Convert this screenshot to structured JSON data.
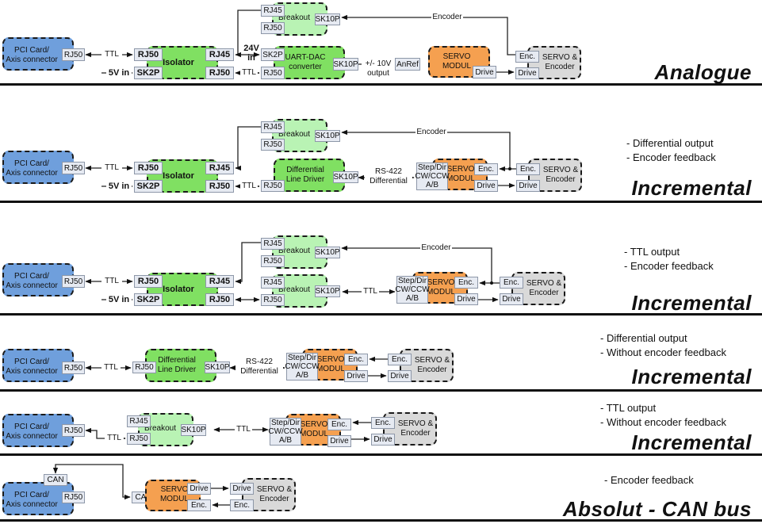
{
  "colors": {
    "pci": "#6f9fdc",
    "module": "#80e062",
    "breakout": "#b9f3b4",
    "servo_modul": "#f5a050",
    "servo_encoder": "#d9d9d9",
    "port": "#e6eaf2"
  },
  "sections": [
    {
      "title": "Analogue",
      "notes": [],
      "text": {
        "pci": "PCI Card/\nAxis connector",
        "pci_rj50": "RJ50",
        "ttl_a": "TTL",
        "iso": "Isolator",
        "iso_rj50_in": "RJ50",
        "iso_sk2p": "SK2P",
        "iso_rj45": "RJ45",
        "iso_rj50_out": "RJ50",
        "v5": "5V in",
        "brk": "Breakout",
        "brk_rj45": "RJ45",
        "brk_rj50": "RJ50",
        "brk_sk10p": "SK10P",
        "v24": "24V in",
        "dac": "UART-DAC\nconverter",
        "dac_sk2p": "SK2P",
        "dac_rj50": "RJ50",
        "dac_sk10p": "SK10P",
        "ttl_b": "TTL",
        "out": "+/- 10V output",
        "sm": "SERVO\nMODUL",
        "sm_anref": "AnRef",
        "sm_drive": "Drive",
        "se": "SERVO &\nEncoder",
        "se_enc": "Enc.",
        "se_drive": "Drive",
        "encoder": "Encoder"
      }
    },
    {
      "title": "Incremental",
      "notes": [
        "- Differential output",
        "- Encoder feedback"
      ],
      "text": {
        "pci": "PCI Card/\nAxis connector",
        "pci_rj50": "RJ50",
        "ttl_a": "TTL",
        "iso": "Isolator",
        "iso_rj50_in": "RJ50",
        "iso_sk2p": "SK2P",
        "iso_rj45": "RJ45",
        "iso_rj50_out": "RJ50",
        "v5": "5V in",
        "brk": "Breakout",
        "brk_rj45": "RJ45",
        "brk_rj50": "RJ50",
        "brk_sk10p": "SK10P",
        "ldd": "Differential\nLine Driver",
        "ldd_rj50": "RJ50",
        "ldd_sk10p": "SK10P",
        "ttl_b": "TTL",
        "rs": "RS-422\nDifferential",
        "sm_step": "Step/Dir\nCW/CCW\nA/B",
        "sm": "SERVO\nMODUL",
        "sm_enc": "Enc.",
        "sm_drive": "Drive",
        "se": "SERVO &\nEncoder",
        "se_enc": "Enc.",
        "se_drive": "Drive",
        "encoder": "Encoder"
      }
    },
    {
      "title": "Incremental",
      "notes": [
        "- TTL output",
        "- Encoder feedback"
      ],
      "text": {
        "pci": "PCI Card/\nAxis connector",
        "pci_rj50": "RJ50",
        "ttl_a": "TTL",
        "iso": "Isolator",
        "iso_rj50_in": "RJ50",
        "iso_sk2p": "SK2P",
        "iso_rj45": "RJ45",
        "iso_rj50_out": "RJ50",
        "v5": "5V in",
        "brk": "Breakout",
        "brk_rj45": "RJ45",
        "brk_rj50": "RJ50",
        "brk_sk10p": "SK10P",
        "brk2": "Breakout",
        "brk2_rj45": "RJ45",
        "brk2_rj50": "RJ50",
        "brk2_sk10p": "SK10P",
        "ttl_b": "TTL",
        "sm_step": "Step/Dir\nCW/CCW\nA/B",
        "sm": "SERVO\nMODUL",
        "sm_enc": "Enc.",
        "sm_drive": "Drive",
        "se": "SERVO &\nEncoder",
        "se_enc": "Enc.",
        "se_drive": "Drive",
        "encoder": "Encoder"
      }
    },
    {
      "title": "Incremental",
      "notes": [
        "- Differential output",
        "- Without encoder feedback"
      ],
      "text": {
        "pci": "PCI Card/\nAxis connector",
        "pci_rj50": "RJ50",
        "ttl_a": "TTL",
        "ldd": "Differential\nLine Driver",
        "ldd_rj50": "RJ50",
        "ldd_sk10p": "SK10P",
        "rs": "RS-422\nDifferential",
        "sm_step": "Step/Dir\nCW/CCW\nA/B",
        "sm": "SERVO\nMODUL",
        "sm_enc": "Enc.",
        "sm_drive": "Drive",
        "se": "SERVO &\nEncoder",
        "se_enc": "Enc.",
        "se_drive": "Drive"
      }
    },
    {
      "title": "Incremental",
      "notes": [
        "- TTL output",
        "- Without encoder feedback"
      ],
      "text": {
        "pci": "PCI Card/\nAxis connector",
        "pci_rj50": "RJ50",
        "ttl_a": "TTL",
        "brk": "Breakout",
        "brk_rj45": "RJ45",
        "brk_rj50": "RJ50",
        "brk_sk10p": "SK10P",
        "ttl_b": "TTL",
        "sm_step": "Step/Dir\nCW/CCW\nA/B",
        "sm": "SERVO\nMODUL",
        "sm_enc": "Enc.",
        "sm_drive": "Drive",
        "se": "SERVO &\nEncoder",
        "se_enc": "Enc.",
        "se_drive": "Drive"
      }
    },
    {
      "title": "Absolut - CAN bus",
      "notes": [
        "- Encoder feedback"
      ],
      "text": {
        "pci": "PCI Card/\nAxis connector",
        "pci_can": "CAN",
        "pci_rj50": "RJ50",
        "sm_can": "CAN",
        "sm": "SERVO\nMODUL",
        "sm_drive": "Drive",
        "sm_enc": "Enc.",
        "se": "SERVO &\nEncoder",
        "se_drive": "Drive",
        "se_enc": "Enc."
      }
    }
  ]
}
